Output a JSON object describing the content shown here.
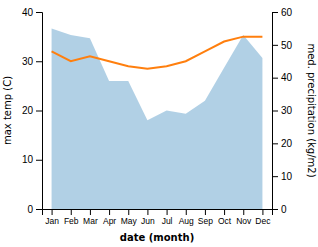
{
  "chart_data": {
    "type": "line",
    "categories": [
      "Jan",
      "Feb",
      "Mar",
      "Apr",
      "May",
      "Jun",
      "Jul",
      "Aug",
      "Sep",
      "Oct",
      "Nov",
      "Dec"
    ],
    "series": [
      {
        "type": "area",
        "axis": "y2",
        "values": [
          55,
          53,
          52,
          39,
          39,
          27,
          30,
          29,
          33,
          43,
          53,
          46
        ]
      },
      {
        "type": "line",
        "values": [
          32,
          30,
          31,
          30,
          29,
          28.5,
          29,
          30,
          32,
          34,
          35,
          35
        ]
      }
    ],
    "x_label": "date (month)",
    "y_label": "max temp (C)",
    "y2_label": "med. precipitation (kg/m2)",
    "ylim": [
      0,
      40
    ],
    "yticks": [
      0,
      10,
      20,
      30,
      40
    ],
    "y2lim": [
      0,
      60
    ],
    "y2ticks": [
      0,
      10,
      20,
      30,
      40,
      50,
      60
    ],
    "grid": false
  }
}
